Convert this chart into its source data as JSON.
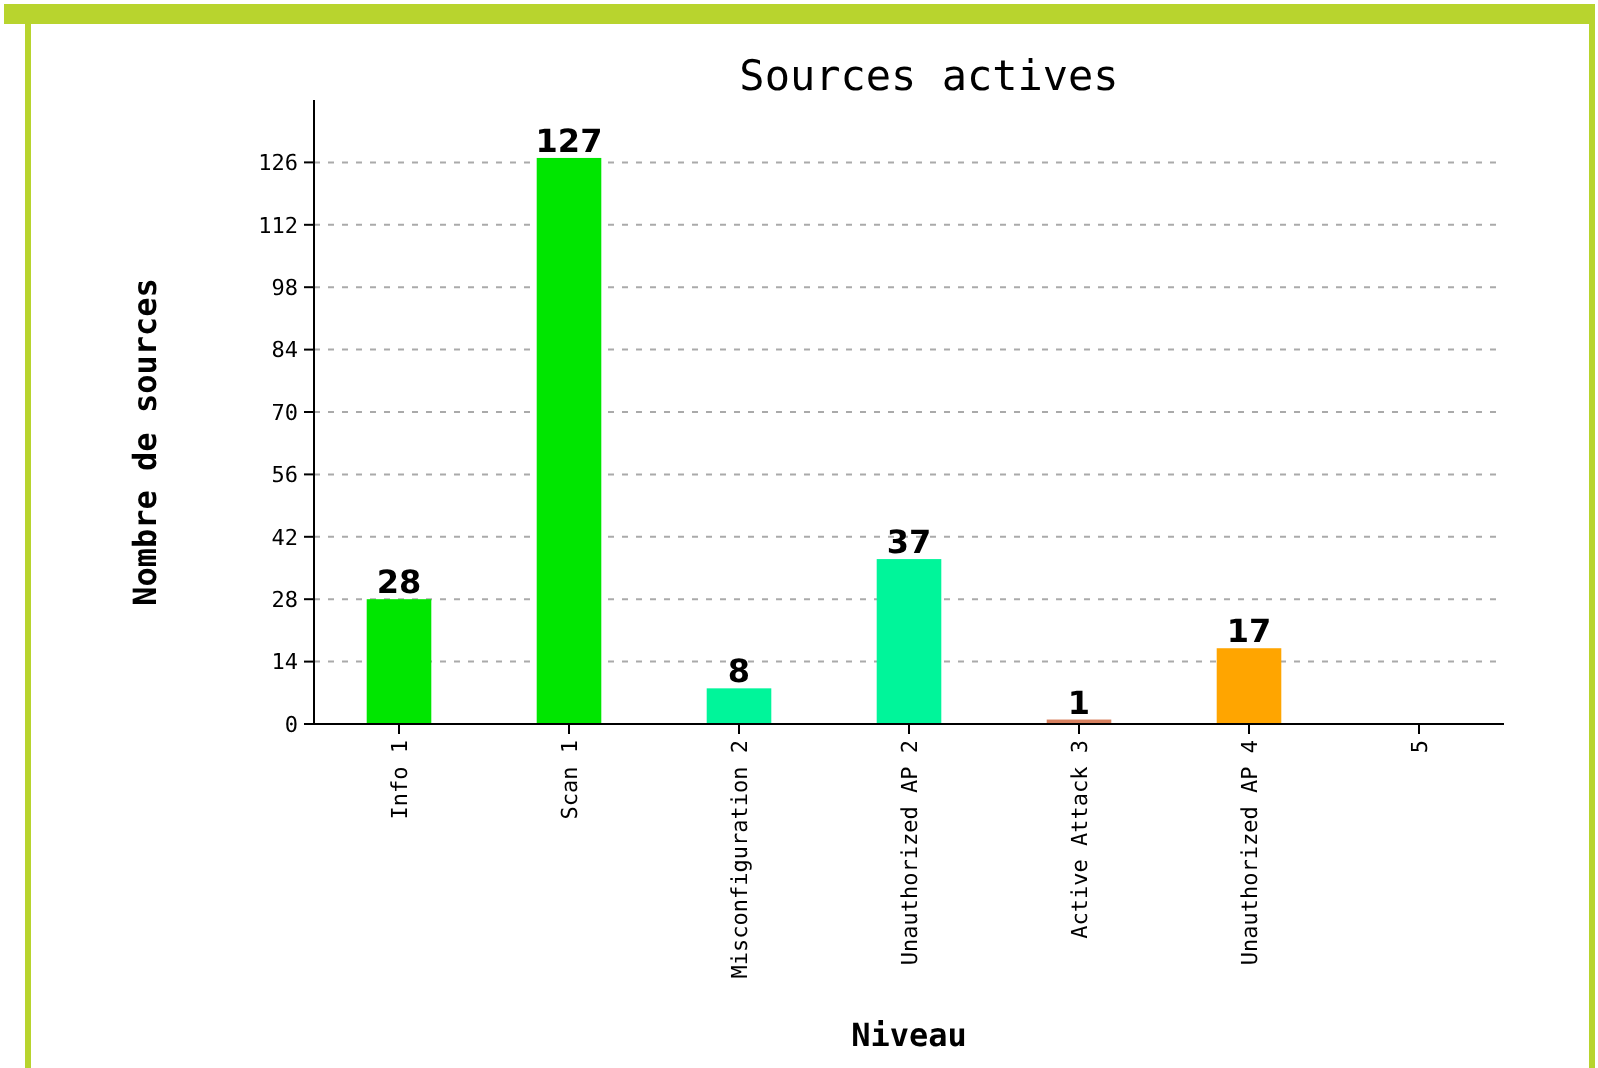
{
  "chart_data": {
    "type": "bar",
    "title": "Sources actives",
    "xlabel": "Niveau",
    "ylabel": "Nombre de sources",
    "categories": [
      "Info 1",
      "Scan 1",
      "Misconfiguration 2",
      "Unauthorized AP 2",
      "Active Attack 3",
      "Unauthorized AP 4",
      "5"
    ],
    "values": [
      28,
      127,
      8,
      37,
      1,
      17,
      null
    ],
    "colors": [
      "#00e600",
      "#00e600",
      "#00f59a",
      "#00f59a",
      "#d7805f",
      "#ffa500",
      null
    ],
    "ylim": [
      0,
      140
    ],
    "yticks": [
      0,
      14,
      28,
      42,
      56,
      70,
      84,
      98,
      112,
      126
    ],
    "grid": "y",
    "data_labels": true
  }
}
